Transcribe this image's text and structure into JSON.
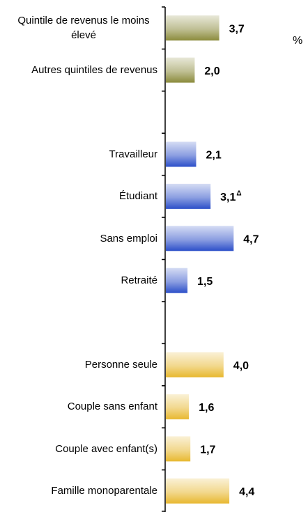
{
  "chart_data": {
    "type": "bar",
    "orientation": "horizontal",
    "unit": "%",
    "categories": [
      "Quintile de revenus le moins élevé",
      "Autres quintiles de revenus",
      null,
      "Travailleur",
      "Étudiant",
      "Sans emploi",
      "Retraité",
      null,
      "Personne seule",
      "Couple sans enfant",
      "Couple avec enfant(s)",
      "Famille monoparentale"
    ],
    "values": [
      3.7,
      2.0,
      null,
      2.1,
      3.1,
      4.7,
      1.5,
      null,
      4.0,
      1.6,
      1.7,
      4.4
    ],
    "value_labels": [
      "3,7",
      "2,0",
      null,
      "2,1",
      "3,1",
      "4,7",
      "1,5",
      null,
      "4,0",
      "1,6",
      "1,7",
      "4,4"
    ],
    "value_notes": [
      null,
      null,
      null,
      null,
      "Δ",
      null,
      null,
      null,
      null,
      null,
      null,
      null
    ],
    "colors": [
      "#8b8b3c",
      "#8b8b3c",
      null,
      "#2c4fc9",
      "#2c4fc9",
      "#2c4fc9",
      "#2c4fc9",
      null,
      "#e8b830",
      "#e8b830",
      "#e8b830",
      "#e8b830"
    ]
  }
}
